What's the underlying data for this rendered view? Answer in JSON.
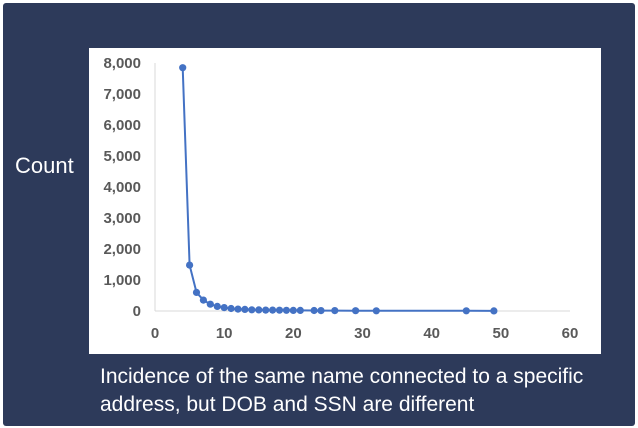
{
  "chart_data": {
    "type": "line",
    "title": "",
    "ylabel": "Count",
    "xlabel": "Incidence of the same name connected to a specific address, but DOB and SSN are different",
    "xlim": [
      0,
      60
    ],
    "ylim": [
      0,
      8000
    ],
    "x_ticks": [
      "0",
      "10",
      "20",
      "30",
      "40",
      "50",
      "60"
    ],
    "y_ticks": [
      "0",
      "1,000",
      "2,000",
      "3,000",
      "4,000",
      "5,000",
      "6,000",
      "7,000",
      "8,000"
    ],
    "grid": false,
    "legend": "none",
    "series": [
      {
        "color": "#4472c4",
        "markers": true,
        "x": [
          4,
          5,
          6,
          7,
          8,
          9,
          10,
          11,
          12,
          13,
          14,
          15,
          16,
          17,
          18,
          19,
          20,
          21,
          23,
          24,
          26,
          29,
          32,
          45,
          49
        ],
        "y": [
          7850,
          1480,
          600,
          350,
          220,
          150,
          110,
          80,
          60,
          50,
          40,
          35,
          30,
          28,
          25,
          22,
          20,
          18,
          15,
          14,
          12,
          10,
          8,
          5,
          4
        ]
      }
    ]
  }
}
